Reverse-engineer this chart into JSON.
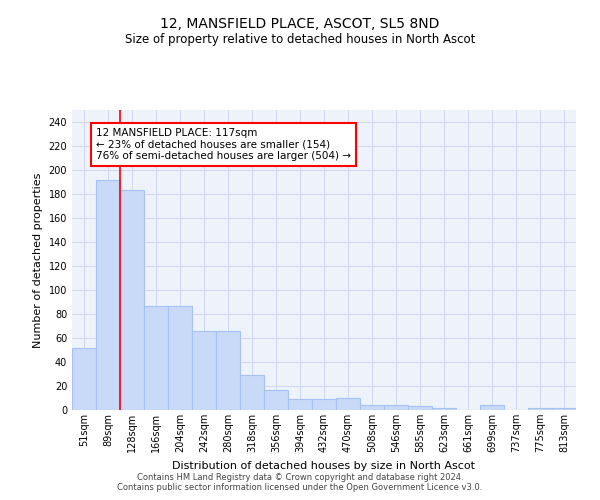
{
  "title": "12, MANSFIELD PLACE, ASCOT, SL5 8ND",
  "subtitle": "Size of property relative to detached houses in North Ascot",
  "xlabel": "Distribution of detached houses by size in North Ascot",
  "ylabel": "Number of detached properties",
  "categories": [
    "51sqm",
    "89sqm",
    "128sqm",
    "166sqm",
    "204sqm",
    "242sqm",
    "280sqm",
    "318sqm",
    "356sqm",
    "394sqm",
    "432sqm",
    "470sqm",
    "508sqm",
    "546sqm",
    "585sqm",
    "623sqm",
    "661sqm",
    "699sqm",
    "737sqm",
    "775sqm",
    "813sqm"
  ],
  "values": [
    52,
    192,
    183,
    87,
    87,
    66,
    66,
    29,
    17,
    9,
    9,
    10,
    4,
    4,
    3,
    2,
    0,
    4,
    0,
    2,
    2
  ],
  "bar_color": "#c9daf8",
  "bar_edge_color": "#a4c2f4",
  "grid_color": "#d0d8f0",
  "background_color": "#eef2fb",
  "red_line_index": 1.5,
  "annotation_text": "12 MANSFIELD PLACE: 117sqm\n← 23% of detached houses are smaller (154)\n76% of semi-detached houses are larger (504) →",
  "annotation_box_color": "white",
  "annotation_box_edge": "red",
  "footer": "Contains HM Land Registry data © Crown copyright and database right 2024.\nContains public sector information licensed under the Open Government Licence v3.0.",
  "ylim": [
    0,
    250
  ],
  "yticks": [
    0,
    20,
    40,
    60,
    80,
    100,
    120,
    140,
    160,
    180,
    200,
    220,
    240
  ],
  "title_fontsize": 10,
  "subtitle_fontsize": 8.5,
  "ylabel_fontsize": 8,
  "xlabel_fontsize": 8,
  "tick_fontsize": 7,
  "footer_fontsize": 6,
  "annot_fontsize": 7.5
}
